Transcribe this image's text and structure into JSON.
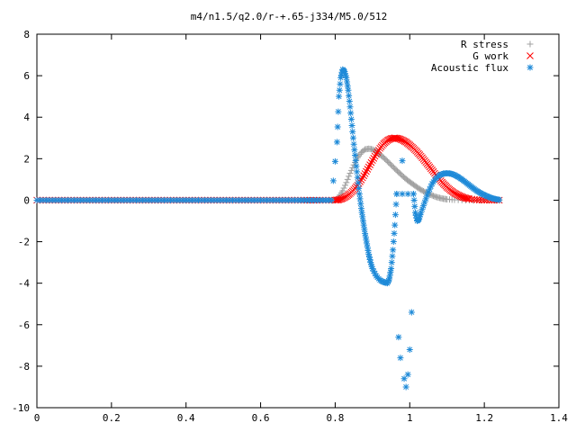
{
  "chart_data": {
    "type": "scatter",
    "title": "m4/n1.5/q2.0/r-+.65-j334/M5.0/512",
    "xlabel": "",
    "ylabel": "",
    "xlim": [
      0,
      1.4
    ],
    "ylim": [
      -10,
      8
    ],
    "xticks": [
      "0",
      "0.2",
      "0.4",
      "0.6",
      "0.8",
      "1",
      "1.2",
      "1.4"
    ],
    "yticks": [
      "-10",
      "-8",
      "-6",
      "-4",
      "-2",
      "0",
      "2",
      "4",
      "6",
      "8"
    ],
    "grid": false,
    "legend_position": "top-right",
    "series": [
      {
        "name": "R stress",
        "marker": "+",
        "color": "#a0a0a0",
        "points": [
          [
            0.0,
            0.0
          ],
          [
            0.1,
            0.0
          ],
          [
            0.2,
            0.0
          ],
          [
            0.3,
            0.0
          ],
          [
            0.4,
            0.0
          ],
          [
            0.5,
            0.0
          ],
          [
            0.6,
            0.0
          ],
          [
            0.7,
            0.0
          ],
          [
            0.8,
            0.0
          ],
          [
            0.81,
            0.15
          ],
          [
            0.82,
            0.45
          ],
          [
            0.83,
            0.85
          ],
          [
            0.84,
            1.3
          ],
          [
            0.85,
            1.7
          ],
          [
            0.86,
            2.05
          ],
          [
            0.87,
            2.3
          ],
          [
            0.88,
            2.45
          ],
          [
            0.89,
            2.48
          ],
          [
            0.9,
            2.45
          ],
          [
            0.91,
            2.35
          ],
          [
            0.92,
            2.2
          ],
          [
            0.93,
            2.05
          ],
          [
            0.94,
            1.88
          ],
          [
            0.95,
            1.7
          ],
          [
            0.96,
            1.52
          ],
          [
            0.97,
            1.35
          ],
          [
            0.98,
            1.18
          ],
          [
            0.99,
            1.02
          ],
          [
            1.0,
            0.88
          ],
          [
            1.01,
            0.75
          ],
          [
            1.02,
            0.62
          ],
          [
            1.03,
            0.5
          ],
          [
            1.04,
            0.4
          ],
          [
            1.05,
            0.31
          ],
          [
            1.06,
            0.23
          ],
          [
            1.07,
            0.16
          ],
          [
            1.08,
            0.11
          ],
          [
            1.09,
            0.07
          ],
          [
            1.1,
            0.04
          ],
          [
            1.12,
            0.02
          ],
          [
            1.15,
            0.0
          ],
          [
            1.18,
            0.0
          ],
          [
            1.21,
            0.0
          ],
          [
            1.24,
            0.0
          ]
        ]
      },
      {
        "name": "G work",
        "marker": "x",
        "color": "#ff0000",
        "points": [
          [
            0.0,
            0.0
          ],
          [
            0.1,
            0.0
          ],
          [
            0.2,
            0.0
          ],
          [
            0.3,
            0.0
          ],
          [
            0.4,
            0.0
          ],
          [
            0.5,
            0.0
          ],
          [
            0.6,
            0.0
          ],
          [
            0.7,
            0.0
          ],
          [
            0.8,
            0.0
          ],
          [
            0.81,
            0.02
          ],
          [
            0.82,
            0.08
          ],
          [
            0.83,
            0.18
          ],
          [
            0.84,
            0.32
          ],
          [
            0.85,
            0.5
          ],
          [
            0.86,
            0.72
          ],
          [
            0.87,
            0.98
          ],
          [
            0.88,
            1.28
          ],
          [
            0.89,
            1.6
          ],
          [
            0.9,
            1.92
          ],
          [
            0.91,
            2.22
          ],
          [
            0.92,
            2.5
          ],
          [
            0.93,
            2.72
          ],
          [
            0.94,
            2.88
          ],
          [
            0.95,
            2.97
          ],
          [
            0.96,
            3.0
          ],
          [
            0.97,
            2.97
          ],
          [
            0.98,
            2.9
          ],
          [
            0.99,
            2.8
          ],
          [
            1.0,
            2.66
          ],
          [
            1.01,
            2.5
          ],
          [
            1.02,
            2.32
          ],
          [
            1.03,
            2.12
          ],
          [
            1.04,
            1.9
          ],
          [
            1.05,
            1.68
          ],
          [
            1.06,
            1.45
          ],
          [
            1.07,
            1.22
          ],
          [
            1.08,
            1.0
          ],
          [
            1.09,
            0.8
          ],
          [
            1.1,
            0.62
          ],
          [
            1.11,
            0.47
          ],
          [
            1.12,
            0.34
          ],
          [
            1.13,
            0.24
          ],
          [
            1.14,
            0.16
          ],
          [
            1.15,
            0.1
          ],
          [
            1.16,
            0.06
          ],
          [
            1.18,
            0.02
          ],
          [
            1.2,
            0.0
          ],
          [
            1.22,
            0.0
          ],
          [
            1.24,
            0.0
          ]
        ]
      },
      {
        "name": "Acoustic flux",
        "marker": "*",
        "color": "#1e8ad8",
        "points": [
          [
            0.0,
            0.0
          ],
          [
            0.1,
            0.0
          ],
          [
            0.2,
            0.0
          ],
          [
            0.3,
            0.0
          ],
          [
            0.4,
            0.0
          ],
          [
            0.5,
            0.0
          ],
          [
            0.6,
            0.0
          ],
          [
            0.7,
            0.0
          ],
          [
            0.79,
            0.0
          ],
          [
            0.805,
            2.8
          ],
          [
            0.81,
            5.0
          ],
          [
            0.815,
            5.9
          ],
          [
            0.82,
            6.3
          ],
          [
            0.825,
            6.2
          ],
          [
            0.83,
            5.9
          ],
          [
            0.835,
            5.3
          ],
          [
            0.84,
            4.5
          ],
          [
            0.845,
            3.6
          ],
          [
            0.85,
            2.7
          ],
          [
            0.855,
            1.9
          ],
          [
            0.86,
            1.1
          ],
          [
            0.865,
            0.3
          ],
          [
            0.87,
            -0.4
          ],
          [
            0.875,
            -1.0
          ],
          [
            0.88,
            -1.6
          ],
          [
            0.885,
            -2.1
          ],
          [
            0.89,
            -2.6
          ],
          [
            0.895,
            -3.0
          ],
          [
            0.9,
            -3.3
          ],
          [
            0.91,
            -3.65
          ],
          [
            0.92,
            -3.85
          ],
          [
            0.93,
            -3.95
          ],
          [
            0.94,
            -4.0
          ],
          [
            0.945,
            -3.8
          ],
          [
            0.95,
            -3.3
          ],
          [
            0.955,
            -2.4
          ],
          [
            0.96,
            -1.2
          ],
          [
            0.965,
            0.3
          ],
          [
            0.97,
            -6.6
          ],
          [
            0.975,
            -7.6
          ],
          [
            0.98,
            1.9
          ],
          [
            0.985,
            -8.6
          ],
          [
            0.99,
            -9.0
          ],
          [
            0.995,
            -8.4
          ],
          [
            1.0,
            -7.2
          ],
          [
            1.005,
            -5.4
          ],
          [
            1.01,
            0.3
          ],
          [
            1.015,
            -0.6
          ],
          [
            1.02,
            -1.0
          ],
          [
            1.025,
            -0.9
          ],
          [
            1.03,
            -0.6
          ],
          [
            1.04,
            -0.1
          ],
          [
            1.05,
            0.4
          ],
          [
            1.06,
            0.8
          ],
          [
            1.07,
            1.05
          ],
          [
            1.08,
            1.2
          ],
          [
            1.09,
            1.28
          ],
          [
            1.1,
            1.3
          ],
          [
            1.11,
            1.28
          ],
          [
            1.12,
            1.22
          ],
          [
            1.13,
            1.12
          ],
          [
            1.14,
            1.0
          ],
          [
            1.15,
            0.86
          ],
          [
            1.16,
            0.72
          ],
          [
            1.17,
            0.58
          ],
          [
            1.18,
            0.45
          ],
          [
            1.19,
            0.34
          ],
          [
            1.2,
            0.25
          ],
          [
            1.21,
            0.17
          ],
          [
            1.22,
            0.1
          ],
          [
            1.23,
            0.05
          ],
          [
            1.24,
            0.02
          ]
        ]
      }
    ]
  }
}
